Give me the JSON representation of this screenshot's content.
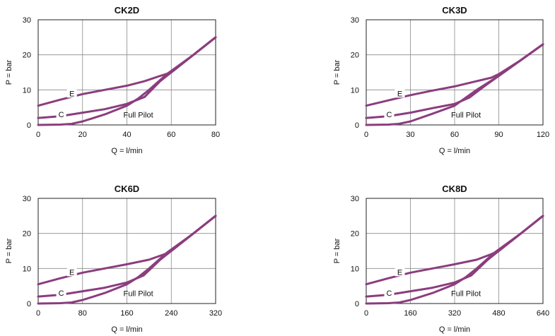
{
  "colors": {
    "series": "#8b3d7e",
    "grid": "#8a8a8a"
  },
  "chart_data": [
    {
      "type": "line",
      "title": "CK2D",
      "xlabel": "Q = l/min",
      "ylabel": "P = bar",
      "xlim": [
        0,
        80
      ],
      "ylim": [
        0,
        30
      ],
      "xticks": [
        0,
        20,
        40,
        60,
        80
      ],
      "yticks": [
        0,
        10,
        20,
        30
      ],
      "grid": true,
      "series": [
        {
          "name": "E",
          "x": [
            0,
            10,
            20,
            30,
            40,
            48,
            55,
            60,
            70,
            80
          ],
          "y": [
            5.5,
            7.2,
            8.8,
            10.0,
            11.2,
            12.5,
            14.0,
            15.0,
            20.0,
            25.0
          ]
        },
        {
          "name": "C",
          "x": [
            0,
            10,
            20,
            30,
            40,
            48,
            55,
            60,
            70,
            80
          ],
          "y": [
            2.0,
            2.5,
            3.5,
            4.5,
            6.0,
            8.0,
            12.5,
            15.0,
            20.0,
            25.0
          ]
        },
        {
          "name": "Full Pilot",
          "x": [
            0,
            10,
            15,
            20,
            30,
            40,
            45,
            50,
            58,
            70,
            80
          ],
          "y": [
            0.0,
            0.1,
            0.3,
            1.0,
            3.0,
            5.5,
            7.5,
            10.0,
            14.5,
            20.0,
            25.0
          ]
        }
      ]
    },
    {
      "type": "line",
      "title": "CK3D",
      "xlabel": "Q = l/min",
      "ylabel": "P = bar",
      "xlim": [
        0,
        120
      ],
      "ylim": [
        0,
        30
      ],
      "xticks": [
        0,
        30,
        60,
        90,
        120
      ],
      "yticks": [
        0,
        10,
        20,
        30
      ],
      "grid": true,
      "series": [
        {
          "name": "E",
          "x": [
            0,
            15,
            30,
            45,
            60,
            75,
            85,
            90,
            105,
            120
          ],
          "y": [
            5.5,
            7.0,
            8.5,
            9.8,
            11.0,
            12.5,
            13.5,
            14.5,
            18.5,
            23.0
          ]
        },
        {
          "name": "C",
          "x": [
            0,
            15,
            30,
            45,
            60,
            70,
            80,
            90,
            105,
            120
          ],
          "y": [
            2.0,
            2.5,
            3.5,
            4.8,
            6.0,
            7.8,
            11.0,
            14.0,
            18.5,
            23.0
          ]
        },
        {
          "name": "Full Pilot",
          "x": [
            0,
            15,
            22,
            30,
            45,
            60,
            65,
            75,
            90,
            105,
            120
          ],
          "y": [
            0.0,
            0.1,
            0.3,
            1.0,
            3.2,
            5.5,
            7.0,
            10.0,
            14.0,
            18.5,
            23.0
          ]
        }
      ]
    },
    {
      "type": "line",
      "title": "CK6D",
      "xlabel": "Q = l/min",
      "ylabel": "P = bar",
      "xlim": [
        0,
        320
      ],
      "ylim": [
        0,
        30
      ],
      "xticks": [
        0,
        80,
        160,
        240,
        320
      ],
      "yticks": [
        0,
        10,
        20,
        30
      ],
      "grid": true,
      "series": [
        {
          "name": "E",
          "x": [
            0,
            40,
            80,
            120,
            160,
            200,
            230,
            240,
            280,
            320
          ],
          "y": [
            5.5,
            7.2,
            8.8,
            10.0,
            11.2,
            12.5,
            14.2,
            15.0,
            20.0,
            25.0
          ]
        },
        {
          "name": "C",
          "x": [
            0,
            40,
            80,
            120,
            160,
            190,
            220,
            240,
            280,
            320
          ],
          "y": [
            2.0,
            2.5,
            3.5,
            4.5,
            6.0,
            8.0,
            12.5,
            15.0,
            20.0,
            25.0
          ]
        },
        {
          "name": "Full Pilot",
          "x": [
            0,
            40,
            60,
            80,
            120,
            160,
            180,
            200,
            232,
            280,
            320
          ],
          "y": [
            0.0,
            0.1,
            0.3,
            1.0,
            3.0,
            5.5,
            7.5,
            10.0,
            14.5,
            20.0,
            25.0
          ]
        }
      ]
    },
    {
      "type": "line",
      "title": "CK8D",
      "xlabel": "Q = l/min",
      "ylabel": "P = bar",
      "xlim": [
        0,
        640
      ],
      "ylim": [
        0,
        30
      ],
      "xticks": [
        0,
        160,
        320,
        480,
        640
      ],
      "yticks": [
        0,
        10,
        20,
        30
      ],
      "grid": true,
      "series": [
        {
          "name": "E",
          "x": [
            0,
            80,
            160,
            240,
            320,
            400,
            450,
            480,
            560,
            640
          ],
          "y": [
            5.5,
            7.2,
            8.8,
            10.0,
            11.2,
            12.5,
            14.0,
            15.0,
            20.0,
            25.0
          ]
        },
        {
          "name": "C",
          "x": [
            0,
            80,
            160,
            240,
            320,
            380,
            440,
            480,
            560,
            640
          ],
          "y": [
            2.0,
            2.5,
            3.5,
            4.5,
            6.0,
            8.0,
            12.5,
            15.0,
            20.0,
            25.0
          ]
        },
        {
          "name": "Full Pilot",
          "x": [
            0,
            80,
            120,
            160,
            240,
            320,
            360,
            400,
            464,
            560,
            640
          ],
          "y": [
            0.0,
            0.1,
            0.3,
            1.0,
            3.0,
            5.5,
            7.5,
            10.0,
            14.5,
            20.0,
            25.0
          ]
        }
      ]
    }
  ]
}
